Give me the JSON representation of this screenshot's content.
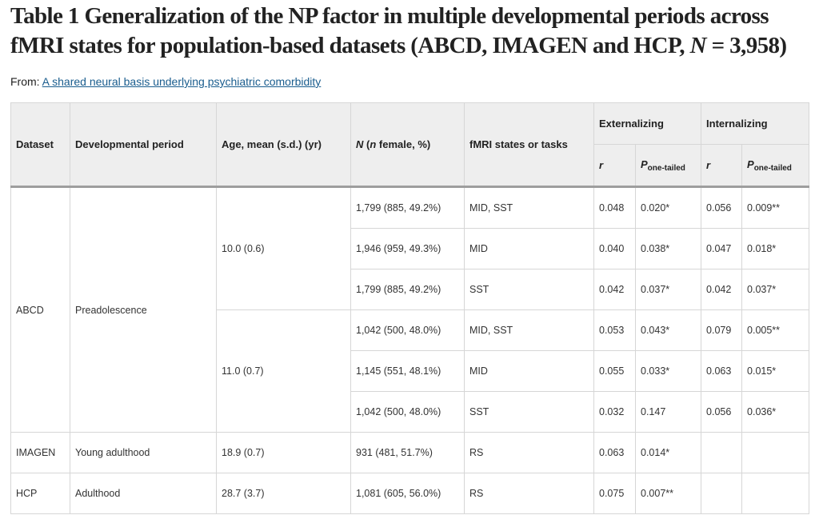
{
  "title": "Table 1 Generalization of the NP factor in multiple developmental periods across fMRI states for population-based datasets (ABCD, IMAGEN and HCP, N = 3,958)",
  "title_parts": {
    "prefix": "Table 1 Generalization of the NP factor in multiple developmental periods across fMRI states for population-based datasets (ABCD, IMAGEN and HCP, ",
    "n_symbol": "N",
    "n_value": " = 3,958)"
  },
  "from": {
    "label": "From: ",
    "link": "A shared neural basis underlying psychiatric comorbidity"
  },
  "headers": {
    "dataset": "Dataset",
    "period": "Developmental period",
    "age": "Age, mean (s.d.) (yr)",
    "n_a": "N",
    "n_b": " (",
    "n_c": "n",
    "n_d": " female, %)",
    "states": "fMRI states or tasks",
    "externalizing": "Externalizing",
    "internalizing": "Internalizing",
    "r": "r",
    "p_main": "P",
    "p_sub": "one-tailed"
  },
  "groups": {
    "abcd": "ABCD",
    "preadolescence": "Preadolescence",
    "age1": "10.0 (0.6)",
    "age2": "11.0 (0.7)"
  },
  "rows": [
    {
      "n": "1,799 (885, 49.2%)",
      "state": "MID, SST",
      "ext_r": "0.048",
      "ext_p": "0.020*",
      "int_r": "0.056",
      "int_p": "0.009**"
    },
    {
      "n": "1,946 (959, 49.3%)",
      "state": "MID",
      "ext_r": "0.040",
      "ext_p": "0.038*",
      "int_r": "0.047",
      "int_p": "0.018*"
    },
    {
      "n": "1,799 (885, 49.2%)",
      "state": "SST",
      "ext_r": "0.042",
      "ext_p": "0.037*",
      "int_r": "0.042",
      "int_p": "0.037*"
    },
    {
      "n": "1,042 (500, 48.0%)",
      "state": "MID, SST",
      "ext_r": "0.053",
      "ext_p": "0.043*",
      "int_r": "0.079",
      "int_p": "0.005**"
    },
    {
      "n": "1,145 (551, 48.1%)",
      "state": "MID",
      "ext_r": "0.055",
      "ext_p": "0.033*",
      "int_r": "0.063",
      "int_p": "0.015*"
    },
    {
      "n": "1,042 (500, 48.0%)",
      "state": "SST",
      "ext_r": "0.032",
      "ext_p": "0.147",
      "int_r": "0.056",
      "int_p": "0.036*"
    },
    {
      "dataset": "IMAGEN",
      "period": "Young adulthood",
      "age": "18.9 (0.7)",
      "n": "931 (481, 51.7%)",
      "state": "RS",
      "ext_r": "0.063",
      "ext_p": "0.014*",
      "int_r": "",
      "int_p": ""
    },
    {
      "dataset": "HCP",
      "period": "Adulthood",
      "age": "28.7 (3.7)",
      "n": "1,081 (605, 56.0%)",
      "state": "RS",
      "ext_r": "0.075",
      "ext_p": "0.007**",
      "int_r": "",
      "int_p": ""
    }
  ]
}
